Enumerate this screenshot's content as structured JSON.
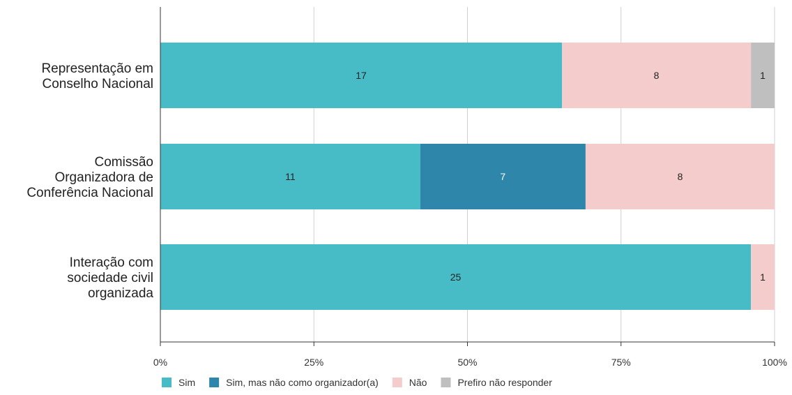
{
  "chart_data": {
    "type": "bar",
    "orientation": "horizontal",
    "stacked": "percent",
    "categories": [
      [
        "Representação em",
        "Conselho Nacional"
      ],
      [
        "Comissão",
        "Organizadora de",
        "Conferência Nacional"
      ],
      [
        "Interação com",
        "sociedade civil",
        "organizada"
      ]
    ],
    "series": [
      {
        "name": "Sim",
        "color": "#47bcc7",
        "values": [
          17,
          11,
          25
        ]
      },
      {
        "name": "Sim, mas não como organizador(a)",
        "color": "#2e86ab",
        "values": [
          0,
          7,
          0
        ]
      },
      {
        "name": "Não",
        "color": "#f4cccc",
        "values": [
          8,
          8,
          1
        ]
      },
      {
        "name": "Prefiro não responder",
        "color": "#bfbfbf",
        "values": [
          1,
          0,
          0
        ]
      }
    ],
    "xticks": [
      "0%",
      "25%",
      "50%",
      "75%",
      "100%"
    ],
    "xlim": [
      0,
      100
    ],
    "grid": true,
    "legend": "bottom-left"
  }
}
